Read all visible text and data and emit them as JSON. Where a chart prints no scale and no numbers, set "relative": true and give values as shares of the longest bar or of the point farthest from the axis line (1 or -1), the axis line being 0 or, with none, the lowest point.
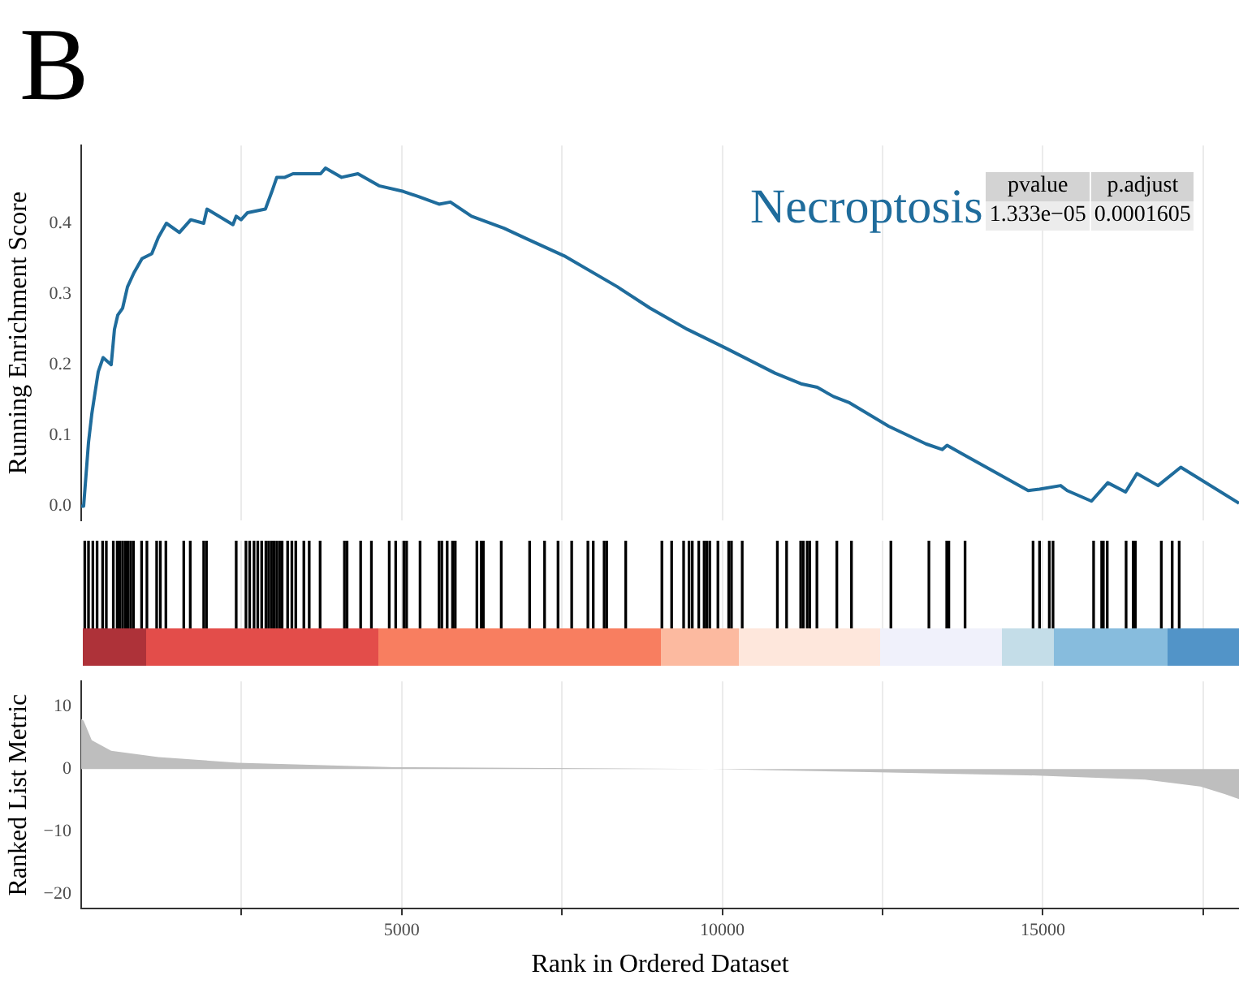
{
  "chart_data": [
    {
      "type": "line",
      "title": "B",
      "ylabel": "Running Enrichment Score",
      "color": "#1f6c9c",
      "x": [
        0,
        38,
        89,
        114,
        165,
        215,
        266,
        342,
        468,
        519,
        570,
        646,
        722,
        823,
        949,
        1101,
        1203,
        1329,
        1532,
        1709,
        1911,
        1962,
        2367,
        2418,
        2494,
        2595,
        2873,
        2975,
        3051,
        3177,
        3304,
        3734,
        3810,
        4063,
        4316,
        4646,
        5025,
        5253,
        5582,
        5759,
        6089,
        6595,
        6949,
        7532,
        8367,
        8873,
        9456,
        10063,
        10823,
        11228,
        11481,
        11734,
        11987,
        12595,
        13177,
        13430,
        13506,
        13759,
        14772,
        14949,
        15278,
        15380,
        15759,
        16013,
        16291,
        16468,
        16797,
        17152,
        18060
      ],
      "values": [
        0,
        0,
        0.06,
        0.09,
        0.13,
        0.16,
        0.19,
        0.21,
        0.2,
        0.25,
        0.27,
        0.28,
        0.31,
        0.33,
        0.35,
        0.357,
        0.38,
        0.4,
        0.387,
        0.405,
        0.4,
        0.42,
        0.398,
        0.41,
        0.405,
        0.415,
        0.42,
        0.445,
        0.465,
        0.465,
        0.47,
        0.47,
        0.478,
        0.465,
        0.47,
        0.453,
        0.445,
        0.438,
        0.427,
        0.43,
        0.41,
        0.393,
        0.378,
        0.354,
        0.31,
        0.28,
        0.25,
        0.223,
        0.188,
        0.173,
        0.168,
        0.155,
        0.146,
        0.113,
        0.088,
        0.08,
        0.086,
        0.073,
        0.022,
        0.024,
        0.029,
        0.022,
        0.007,
        0.033,
        0.02,
        0.046,
        0.029,
        0.055,
        0.004
      ],
      "xlim": [
        0,
        18060
      ],
      "xticks": [
        {
          "value": 2500,
          "label": null
        },
        {
          "value": 5000,
          "label": null
        },
        {
          "value": 7500,
          "label": null
        },
        {
          "value": 10000,
          "label": null
        },
        {
          "value": 12500,
          "label": null
        },
        {
          "value": 15000,
          "label": null
        },
        {
          "value": 17500,
          "label": null
        }
      ],
      "ylim": [
        -0.02,
        0.51
      ],
      "yticks": [
        {
          "value": 0,
          "label": "0.0"
        },
        {
          "value": 0.1,
          "label": "0.1"
        },
        {
          "value": 0.2,
          "label": "0.2"
        },
        {
          "value": 0.3,
          "label": "0.3"
        },
        {
          "value": 0.4,
          "label": "0.4"
        }
      ],
      "grid": "x",
      "tick_labels": "y",
      "annotations": [
        "Necroptosis",
        "pvalue",
        "p.adjust",
        "1.333e−05",
        "0.0001605"
      ]
    },
    {
      "type": "bar",
      "color": "#000000",
      "relative": true,
      "x": [
        56,
        114,
        182,
        248,
        334,
        392,
        501,
        562,
        603,
        646,
        689,
        729,
        772,
        815,
        942,
        1025,
        1177,
        1235,
        1321,
        1600,
        1701,
        1911,
        1954,
        2418,
        2570,
        2628,
        2696,
        2754,
        2815,
        2881,
        2924,
        2967,
        3008,
        3051,
        3094,
        3134,
        3220,
        3286,
        3347,
        3473,
        3557,
        3727,
        4106,
        4147,
        4359,
        4527,
        4805,
        4906,
        5033,
        5076,
        5286,
        5582,
        5625,
        5709,
        5792,
        5835,
        6172,
        6241,
        6273,
        6552,
        6995,
        7228,
        7438,
        7651,
        7904,
        7987,
        8157,
        8197,
        8494,
        9058,
        9210,
        9397,
        9481,
        9532,
        9633,
        9717,
        9759,
        9805,
        9932,
        10100,
        10143,
        10311,
        10859,
        11003,
        11223,
        11263,
        11324,
        11365,
        11476,
        11787,
        12015,
        12630,
        13223,
        13501,
        13534,
        13787,
        14848,
        14949,
        15101,
        15159,
        15792,
        15918,
        15944,
        16005,
        16299,
        16410,
        16443,
        16848,
        17018,
        17127
      ],
      "values": [
        1,
        1,
        1,
        1,
        1,
        1,
        1,
        1,
        1,
        1,
        1,
        1,
        1,
        1,
        1,
        1,
        1,
        1,
        1,
        1,
        1,
        1,
        1,
        1,
        1,
        1,
        1,
        1,
        1,
        1,
        1,
        1,
        1,
        1,
        1,
        1,
        1,
        1,
        1,
        1,
        1,
        1,
        1,
        1,
        1,
        1,
        1,
        1,
        1,
        1,
        1,
        1,
        1,
        1,
        1,
        1,
        1,
        1,
        1,
        1,
        1,
        1,
        1,
        1,
        1,
        1,
        1,
        1,
        1,
        1,
        1,
        1,
        1,
        1,
        1,
        1,
        1,
        1,
        1,
        1,
        1,
        1,
        1,
        1,
        1,
        1,
        1,
        1,
        1,
        1,
        1,
        1,
        1,
        1,
        1,
        1,
        1,
        1,
        1,
        1,
        1,
        1,
        1,
        1,
        1,
        1,
        1,
        1,
        1,
        1
      ],
      "xlim": [
        0,
        18060
      ],
      "xticks": [
        {
          "value": 2500,
          "label": null
        },
        {
          "value": 5000,
          "label": null
        },
        {
          "value": 7500,
          "label": null
        },
        {
          "value": 10000,
          "label": null
        },
        {
          "value": 12500,
          "label": null
        },
        {
          "value": 15000,
          "label": null
        },
        {
          "value": 17500,
          "label": null
        }
      ],
      "grid": "x",
      "tick_labels": false
    },
    {
      "type": "area",
      "color": "#bebebe",
      "xlabel": "Rank in Ordered Dataset",
      "ylabel": "Ranked List Metric",
      "x": [
        0,
        38,
        165,
        468,
        1203,
        2443,
        4899,
        9835,
        12291,
        14747,
        16595,
        17456,
        17835,
        18060
      ],
      "values": [
        8,
        7.7,
        4.6,
        2.9,
        1.9,
        1,
        0.3,
        0,
        -0.5,
        -1,
        -1.7,
        -2.8,
        -4,
        -4.8
      ],
      "xlim": [
        0,
        18060
      ],
      "xticks": [
        {
          "value": 2500,
          "label": null
        },
        5000,
        {
          "value": 7500,
          "label": null
        },
        10000,
        {
          "value": 12500,
          "label": null
        },
        15000,
        {
          "value": 17500,
          "label": null
        }
      ],
      "ylim": [
        -22.3,
        14
      ],
      "yticks": [
        {
          "value": -20,
          "label": "−20"
        },
        {
          "value": -10,
          "label": "−10"
        },
        0,
        10
      ],
      "grid": "x"
    }
  ]
}
